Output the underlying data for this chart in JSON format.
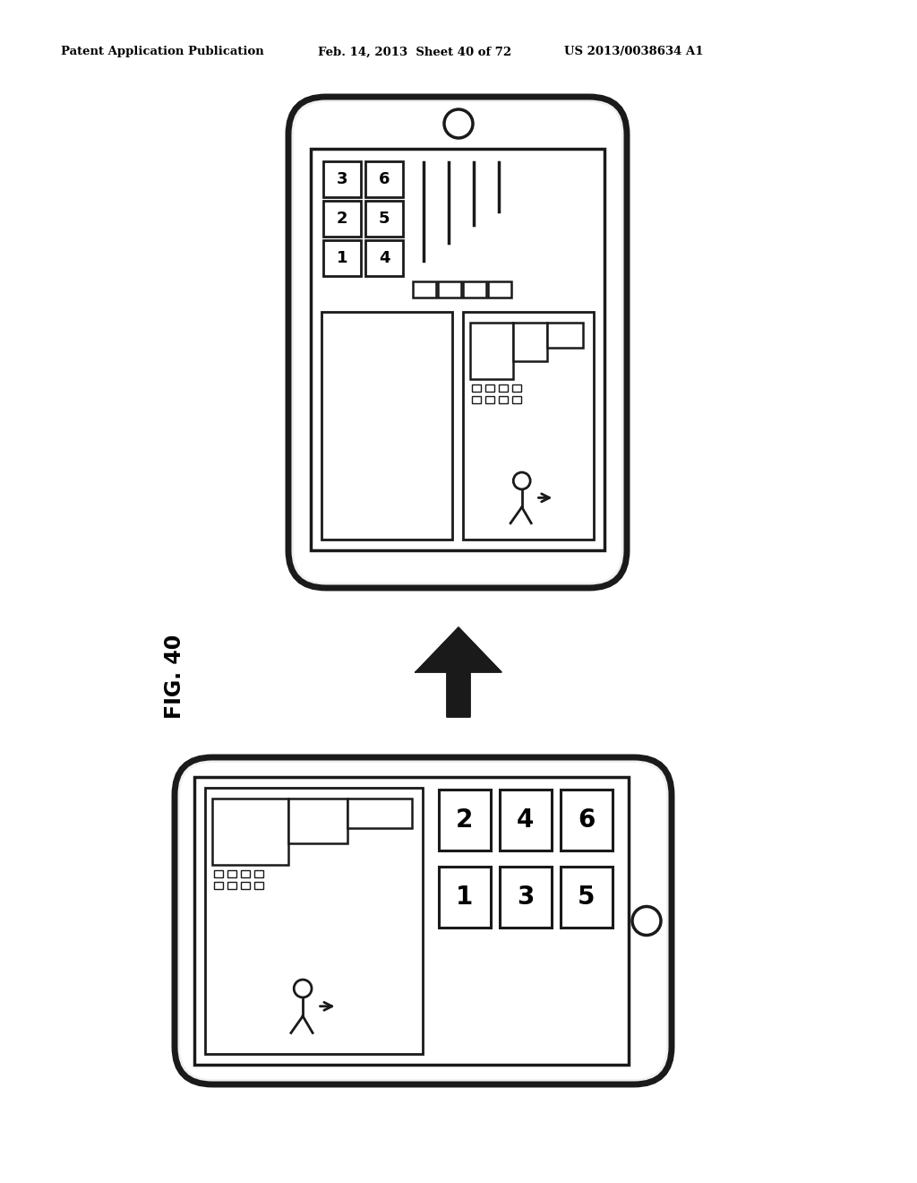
{
  "title_left": "Patent Application Publication",
  "title_mid": "Feb. 14, 2013  Sheet 40 of 72",
  "title_right": "US 2013/0038634 A1",
  "fig_label": "FIG. 40",
  "bg_color": "#ffffff"
}
